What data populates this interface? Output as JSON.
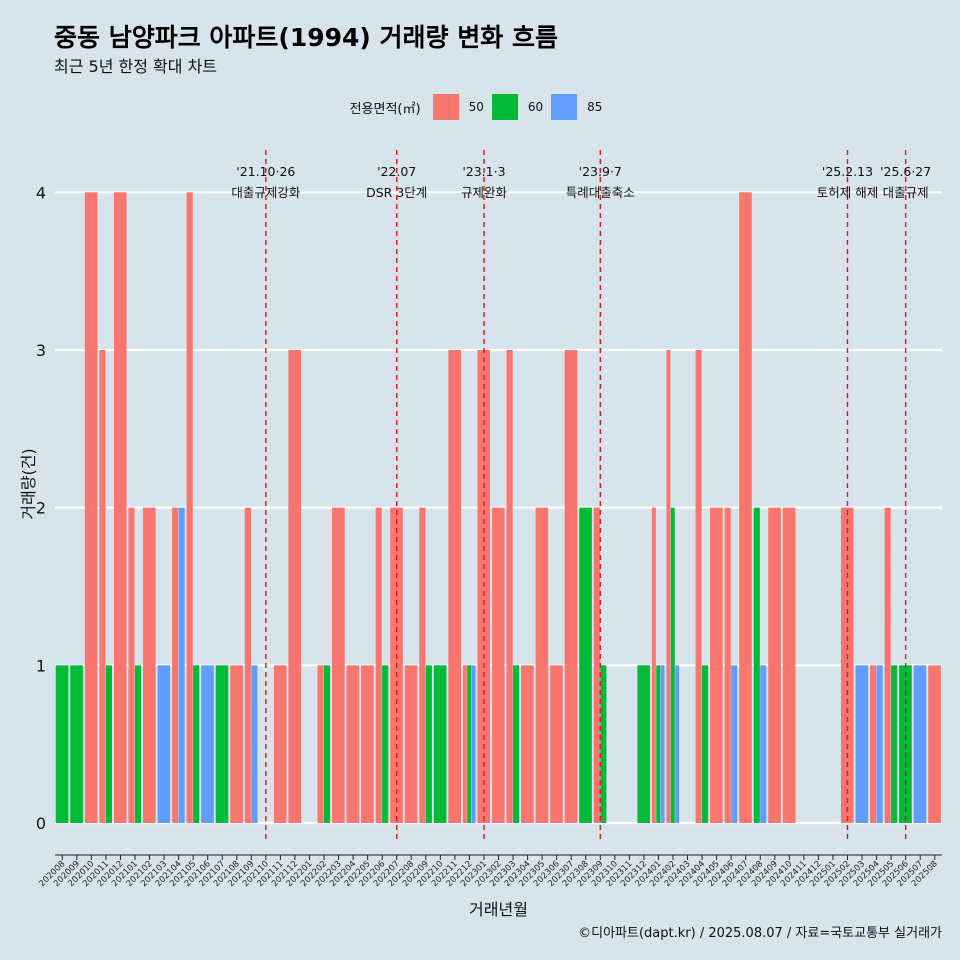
{
  "title": "중동 남양파크 아파트(1994) 거래량 변화 흐름",
  "subtitle": "최근 5년 한정 확대 차트",
  "legend": {
    "title": "전용면적(㎡)",
    "items": [
      {
        "label": "50",
        "color": "#f8766d"
      },
      {
        "label": "60",
        "color": "#00ba38"
      },
      {
        "label": "85",
        "color": "#619cff"
      }
    ]
  },
  "footer": "©디아파트(dapt.kr) / 2025.08.07 / 자료=국토교통부 실거래가",
  "chart_data": {
    "type": "bar",
    "xlabel": "거래년월",
    "ylabel": "거래량(건)",
    "ylim": [
      0,
      4.3
    ],
    "yticks": [
      0,
      1,
      2,
      3,
      4
    ],
    "grid": true,
    "legend_position": "top",
    "categories": [
      "202008",
      "202009",
      "202010",
      "202011",
      "202012",
      "202101",
      "202102",
      "202103",
      "202104",
      "202105",
      "202106",
      "202107",
      "202108",
      "202109",
      "202110",
      "202111",
      "202112",
      "202201",
      "202202",
      "202203",
      "202204",
      "202205",
      "202206",
      "202207",
      "202208",
      "202209",
      "202210",
      "202211",
      "202212",
      "202301",
      "202302",
      "202303",
      "202304",
      "202305",
      "202306",
      "202307",
      "202308",
      "202309",
      "202310",
      "202311",
      "202312",
      "202401",
      "202402",
      "202403",
      "202404",
      "202405",
      "202406",
      "202407",
      "202408",
      "202409",
      "202410",
      "202411",
      "202412",
      "202501",
      "202502",
      "202503",
      "202504",
      "202505",
      "202506",
      "202507",
      "202508"
    ],
    "series": [
      {
        "name": "50",
        "color": "#f8766d",
        "values": [
          0,
          0,
          4,
          3,
          4,
          2,
          2,
          0,
          2,
          4,
          0,
          0,
          1,
          2,
          0,
          1,
          3,
          0,
          1,
          2,
          1,
          1,
          2,
          2,
          1,
          2,
          0,
          3,
          1,
          3,
          2,
          3,
          1,
          2,
          1,
          3,
          0,
          2,
          0,
          0,
          0,
          2,
          3,
          0,
          3,
          2,
          2,
          4,
          0,
          2,
          2,
          0,
          0,
          0,
          2,
          0,
          1,
          2,
          0,
          0,
          1
        ]
      },
      {
        "name": "60",
        "color": "#00ba38",
        "values": [
          1,
          1,
          0,
          1,
          0,
          1,
          0,
          0,
          0,
          1,
          0,
          1,
          0,
          0,
          0,
          0,
          0,
          0,
          1,
          0,
          0,
          0,
          1,
          0,
          0,
          1,
          1,
          0,
          1,
          0,
          0,
          1,
          0,
          0,
          0,
          0,
          2,
          1,
          0,
          0,
          1,
          1,
          2,
          0,
          1,
          0,
          0,
          0,
          2,
          0,
          0,
          0,
          0,
          0,
          0,
          0,
          0,
          1,
          1,
          0,
          0
        ]
      },
      {
        "name": "85",
        "color": "#619cff",
        "values": [
          0,
          0,
          0,
          0,
          0,
          0,
          0,
          1,
          2,
          0,
          1,
          0,
          0,
          1,
          0,
          0,
          0,
          0,
          0,
          0,
          0,
          0,
          0,
          0,
          0,
          0,
          0,
          0,
          1,
          0,
          0,
          0,
          0,
          0,
          0,
          0,
          0,
          0,
          0,
          0,
          0,
          1,
          1,
          0,
          0,
          0,
          1,
          0,
          1,
          0,
          0,
          0,
          0,
          0,
          0,
          1,
          1,
          0,
          0,
          1,
          0
        ]
      }
    ],
    "annotations": [
      {
        "x": "202110",
        "line1": "'21.10·26",
        "line2": "대출규제강화"
      },
      {
        "x": "202207",
        "line1": "'22.07",
        "line2": "DSR 3단계"
      },
      {
        "x": "202301",
        "line1": "'23.1·3",
        "line2": "규제완화"
      },
      {
        "x": "202309",
        "line1": "'23.9·7",
        "line2": "특례대출축소"
      },
      {
        "x": "202502",
        "line1": "'25.2.13",
        "line2": "토허제 해제"
      },
      {
        "x": "202506",
        "line1": "'25.6·27",
        "line2": "대출규제"
      }
    ]
  }
}
